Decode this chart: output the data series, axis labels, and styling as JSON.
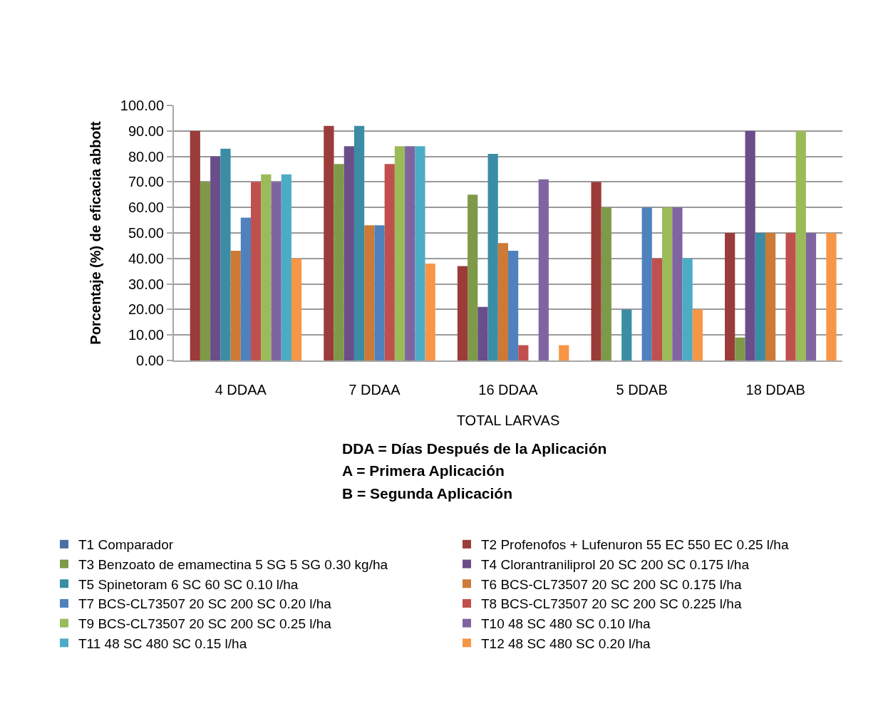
{
  "chart_data": {
    "type": "bar",
    "xlabel": "TOTAL LARVAS",
    "ylabel": "Porcentaje (%) de eficacia abbott",
    "annotations": [
      "DDA = Días Después de la Aplicación",
      "A = Primera Aplicación",
      "B = Segunda Aplicación"
    ],
    "categories": [
      "4 DDAA",
      "7 DDAA",
      "16 DDAA",
      "5 DDAB",
      "18 DDAB"
    ],
    "series": [
      {
        "name": "T1 Comparador",
        "color": "#4a6fa5",
        "values": [
          0,
          0,
          0,
          0,
          0
        ]
      },
      {
        "name": "T2 Profenofos + Lufenuron 55 EC 550 EC 0.25 l/ha",
        "color": "#9b3b3a",
        "values": [
          90,
          92,
          37,
          70,
          50
        ]
      },
      {
        "name": "T3 Benzoato de emamectina 5 SG 5 SG 0.30 kg/ha",
        "color": "#7e9a48",
        "values": [
          70,
          77,
          65,
          60,
          9
        ]
      },
      {
        "name": "T4 Clorantraniliprol 20 SC 200 SC 0.175 l/ha",
        "color": "#6a4e8a",
        "values": [
          80,
          84,
          21,
          0,
          90
        ]
      },
      {
        "name": "T5 Spinetoram 6 SC 60 SC 0.10 l/ha",
        "color": "#3a8da5",
        "values": [
          83,
          92,
          81,
          20,
          50
        ]
      },
      {
        "name": "T6 BCS-CL73507 20 SC 200 SC 0.175 l/ha",
        "color": "#cc7a35",
        "values": [
          43,
          53,
          46,
          0,
          50
        ]
      },
      {
        "name": "T7 BCS-CL73507 20 SC 200 SC 0.20 l/ha",
        "color": "#4f81bd",
        "values": [
          56,
          53,
          43,
          60,
          0
        ]
      },
      {
        "name": "T8 BCS-CL73507 20 SC 200 SC 0.225 l/ha",
        "color": "#c0504d",
        "values": [
          70,
          77,
          6,
          40,
          50
        ]
      },
      {
        "name": "T9 BCS-CL73507 20 SC 200 SC 0.25 l/ha",
        "color": "#9bbb59",
        "values": [
          73,
          84,
          0,
          60,
          90
        ]
      },
      {
        "name": "T10 48 SC 480 SC 0.10 l/ha",
        "color": "#8064a2",
        "values": [
          70,
          84,
          71,
          60,
          50
        ]
      },
      {
        "name": "T11 48 SC 480 SC 0.15 l/ha",
        "color": "#4bacc6",
        "values": [
          73,
          84,
          0,
          40,
          0
        ]
      },
      {
        "name": "T12 48 SC 480 SC 0.20 l/ha",
        "color": "#f79646",
        "values": [
          40,
          38,
          6,
          20,
          50
        ]
      }
    ],
    "ylim": [
      0,
      100
    ],
    "yticks": [
      {
        "value": 0,
        "label": "0.00"
      },
      {
        "value": 10,
        "label": "10.00"
      },
      {
        "value": 20,
        "label": "20.00"
      },
      {
        "value": 30,
        "label": "30.00"
      },
      {
        "value": 40,
        "label": "40.00"
      },
      {
        "value": 50,
        "label": "50.00"
      },
      {
        "value": 60,
        "label": "60.00"
      },
      {
        "value": 70,
        "label": "70.00"
      },
      {
        "value": 80,
        "label": "80.00"
      },
      {
        "value": 90,
        "label": "90.00"
      },
      {
        "value": 100,
        "label": "100.00"
      }
    ],
    "grid": "y",
    "legend": "bottom"
  }
}
